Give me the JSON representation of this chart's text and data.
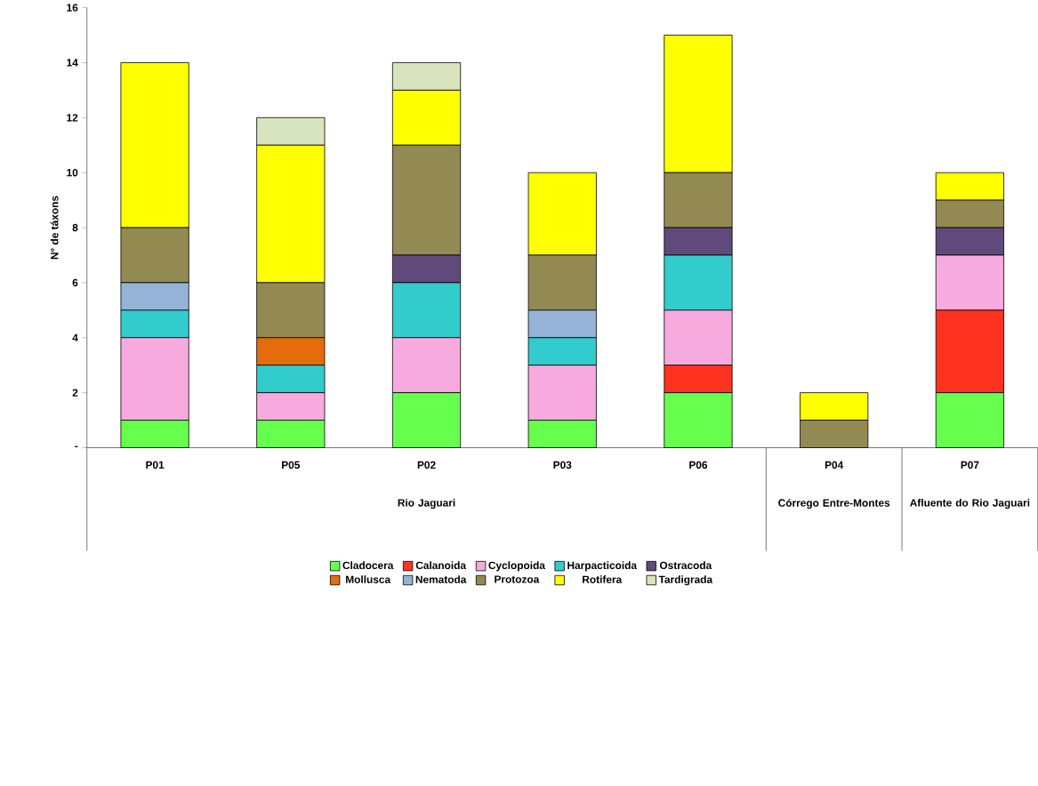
{
  "chart_data": {
    "type": "bar",
    "stacked": true,
    "ylabel": "N° de táxons",
    "categories": [
      "P01",
      "P05",
      "P02",
      "P03",
      "P06",
      "P04",
      "P07"
    ],
    "series": [
      {
        "name": "Cladocera",
        "color": "#66ff4d",
        "values": [
          1,
          1,
          2,
          1,
          2,
          0,
          2
        ]
      },
      {
        "name": "Calanoida",
        "color": "#ff3320",
        "values": [
          0,
          0,
          0,
          0,
          1,
          0,
          3
        ]
      },
      {
        "name": "Cyclopoida",
        "color": "#f7aade",
        "values": [
          3,
          1,
          2,
          2,
          2,
          0,
          2
        ]
      },
      {
        "name": "Harpacticoida",
        "color": "#33cccc",
        "values": [
          1,
          1,
          2,
          1,
          2,
          0,
          0
        ]
      },
      {
        "name": "Ostracoda",
        "color": "#604a7b",
        "values": [
          0,
          0,
          1,
          0,
          1,
          0,
          1
        ]
      },
      {
        "name": "Mollusca",
        "color": "#e46c0a",
        "values": [
          0,
          1,
          0,
          0,
          0,
          0,
          0
        ]
      },
      {
        "name": "Nematoda",
        "color": "#95b3d7",
        "values": [
          1,
          0,
          0,
          1,
          0,
          0,
          0
        ]
      },
      {
        "name": "Protozoa",
        "color": "#938953",
        "values": [
          2,
          2,
          4,
          2,
          2,
          1,
          1
        ]
      },
      {
        "name": "Rotifera",
        "color": "#ffff00",
        "values": [
          6,
          5,
          2,
          3,
          5,
          1,
          1
        ]
      },
      {
        "name": "Tardigrada",
        "color": "#d7e4bd",
        "values": [
          0,
          1,
          1,
          0,
          0,
          0,
          0
        ]
      }
    ],
    "ylim": [
      0,
      16
    ],
    "yticks": [
      {
        "value": 0,
        "label": "-"
      },
      2,
      4,
      6,
      8,
      10,
      12,
      14,
      16
    ],
    "annotations": [
      "Rio Jaguari",
      "Córrego Entre-Montes",
      "Afluente do Rio Jaguari"
    ],
    "legend": "bottom",
    "grid": false
  }
}
